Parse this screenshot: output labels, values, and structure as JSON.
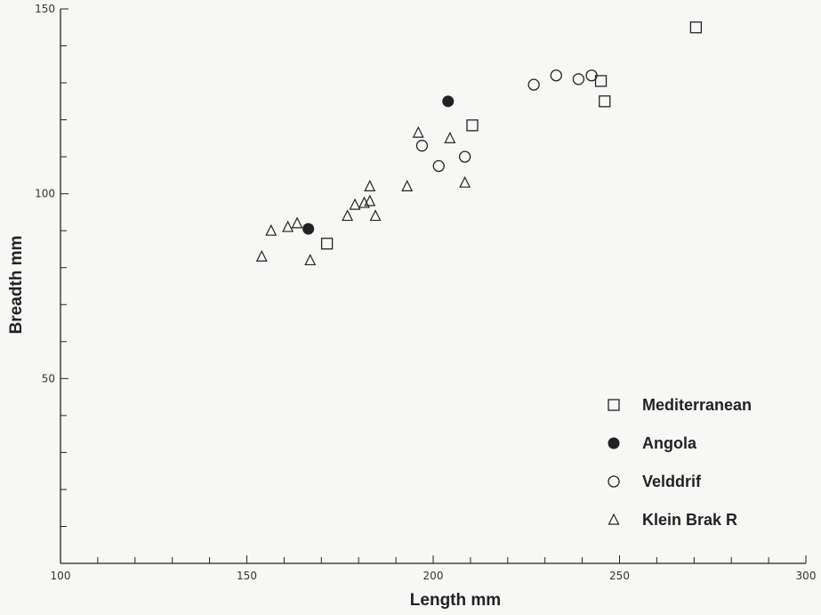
{
  "chart_data": {
    "type": "scatter",
    "title": "",
    "xlabel": "Length mm",
    "ylabel": "Breadth mm",
    "xlim": [
      100,
      300
    ],
    "ylim": [
      0,
      150
    ],
    "x_ticks": [
      100,
      150,
      200,
      250,
      300
    ],
    "x_minor_step": 10,
    "y_ticks": [
      50,
      100,
      150
    ],
    "y_minor_step": 10,
    "grid": false,
    "legend_position": "bottom-right",
    "series": [
      {
        "name": "Mediterranean",
        "marker": "square-open",
        "points": [
          [
            171.5,
            86.5
          ],
          [
            210.5,
            118.5
          ],
          [
            245,
            130.5
          ],
          [
            246,
            125
          ],
          [
            270.5,
            145
          ]
        ]
      },
      {
        "name": "Angola",
        "marker": "circle-filled",
        "points": [
          [
            166.5,
            90.5
          ],
          [
            204,
            125
          ]
        ]
      },
      {
        "name": "Velddrif",
        "marker": "circle-open",
        "points": [
          [
            197,
            113
          ],
          [
            201.5,
            107.5
          ],
          [
            208.5,
            110
          ],
          [
            227,
            129.5
          ],
          [
            233,
            132
          ],
          [
            239,
            131
          ],
          [
            242.5,
            132
          ]
        ]
      },
      {
        "name": "Klein Brak R",
        "marker": "triangle-open",
        "points": [
          [
            154,
            83
          ],
          [
            156.5,
            90
          ],
          [
            161,
            91
          ],
          [
            163.5,
            92
          ],
          [
            167,
            82
          ],
          [
            177,
            94
          ],
          [
            179,
            97
          ],
          [
            181.5,
            97.5
          ],
          [
            183,
            102
          ],
          [
            183,
            98
          ],
          [
            184.5,
            94
          ],
          [
            193,
            102
          ],
          [
            196,
            116.5
          ],
          [
            204.5,
            115
          ],
          [
            208.5,
            103
          ]
        ]
      }
    ]
  }
}
